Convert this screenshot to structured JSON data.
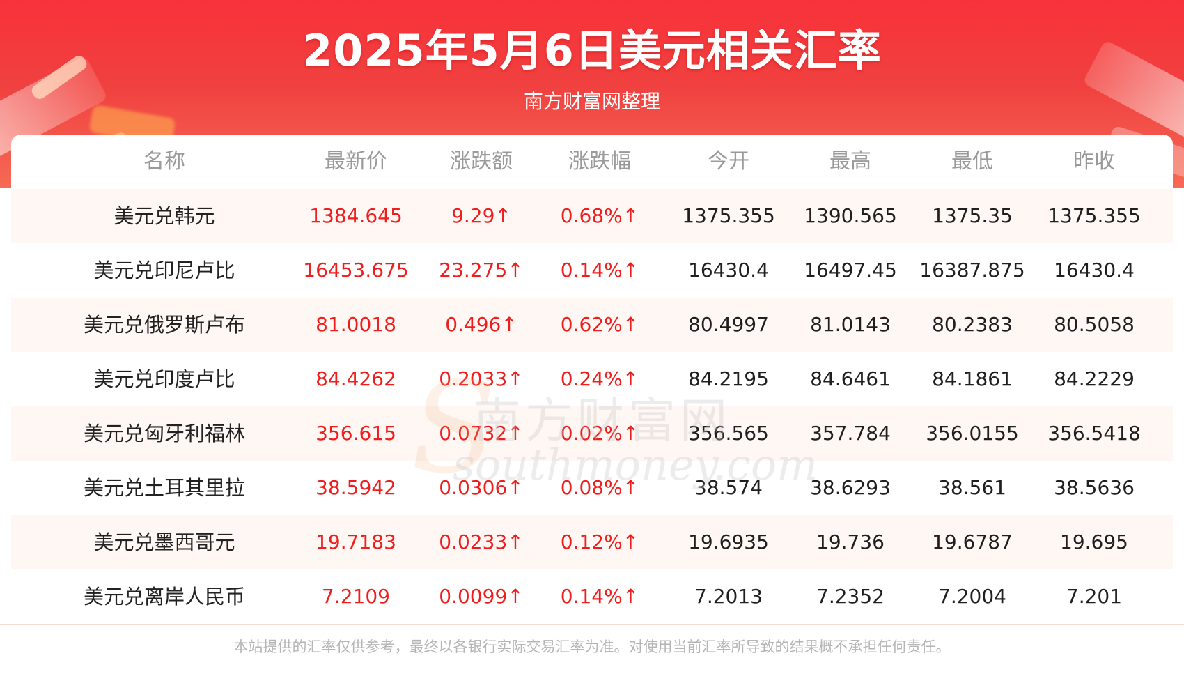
{
  "header": {
    "title": "2025年5月6日美元相关汇率",
    "subtitle": "南方财富网整理"
  },
  "table": {
    "columns": [
      "名称",
      "最新价",
      "涨跌额",
      "涨跌幅",
      "今开",
      "最高",
      "最低",
      "昨收"
    ],
    "rows": [
      [
        "美元兑韩元",
        "1384.645",
        "9.29↑",
        "0.68%↑",
        "1375.355",
        "1390.565",
        "1375.35",
        "1375.355"
      ],
      [
        "美元兑印尼卢比",
        "16453.675",
        "23.275↑",
        "0.14%↑",
        "16430.4",
        "16497.45",
        "16387.875",
        "16430.4"
      ],
      [
        "美元兑俄罗斯卢布",
        "81.0018",
        "0.496↑",
        "0.62%↑",
        "80.4997",
        "81.0143",
        "80.2383",
        "80.5058"
      ],
      [
        "美元兑印度卢比",
        "84.4262",
        "0.2033↑",
        "0.24%↑",
        "84.2195",
        "84.6461",
        "84.1861",
        "84.2229"
      ],
      [
        "美元兑匈牙利福林",
        "356.615",
        "0.0732↑",
        "0.02%↑",
        "356.565",
        "357.784",
        "356.0155",
        "356.5418"
      ],
      [
        "美元兑土耳其里拉",
        "38.5942",
        "0.0306↑",
        "0.08%↑",
        "38.574",
        "38.6293",
        "38.561",
        "38.5636"
      ],
      [
        "美元兑墨西哥元",
        "19.7183",
        "0.0233↑",
        "0.12%↑",
        "19.6935",
        "19.736",
        "19.6787",
        "19.695"
      ],
      [
        "美元兑离岸人民币",
        "7.2109",
        "0.0099↑",
        "0.14%↑",
        "7.2013",
        "7.2352",
        "7.2004",
        "7.201"
      ]
    ]
  },
  "watermark": {
    "cn": "南方财富网",
    "en": "southmoney.com"
  },
  "footer": {
    "disclaimer": "本站提供的汇率仅供参考，最终以各银行实际交易汇率为准。对使用当前汇率所导致的结果概不承担任何责任。"
  },
  "colors": {
    "header_red": "#f8323a",
    "up_red": "#f01d1d",
    "row_alt": "#fff7f3"
  }
}
